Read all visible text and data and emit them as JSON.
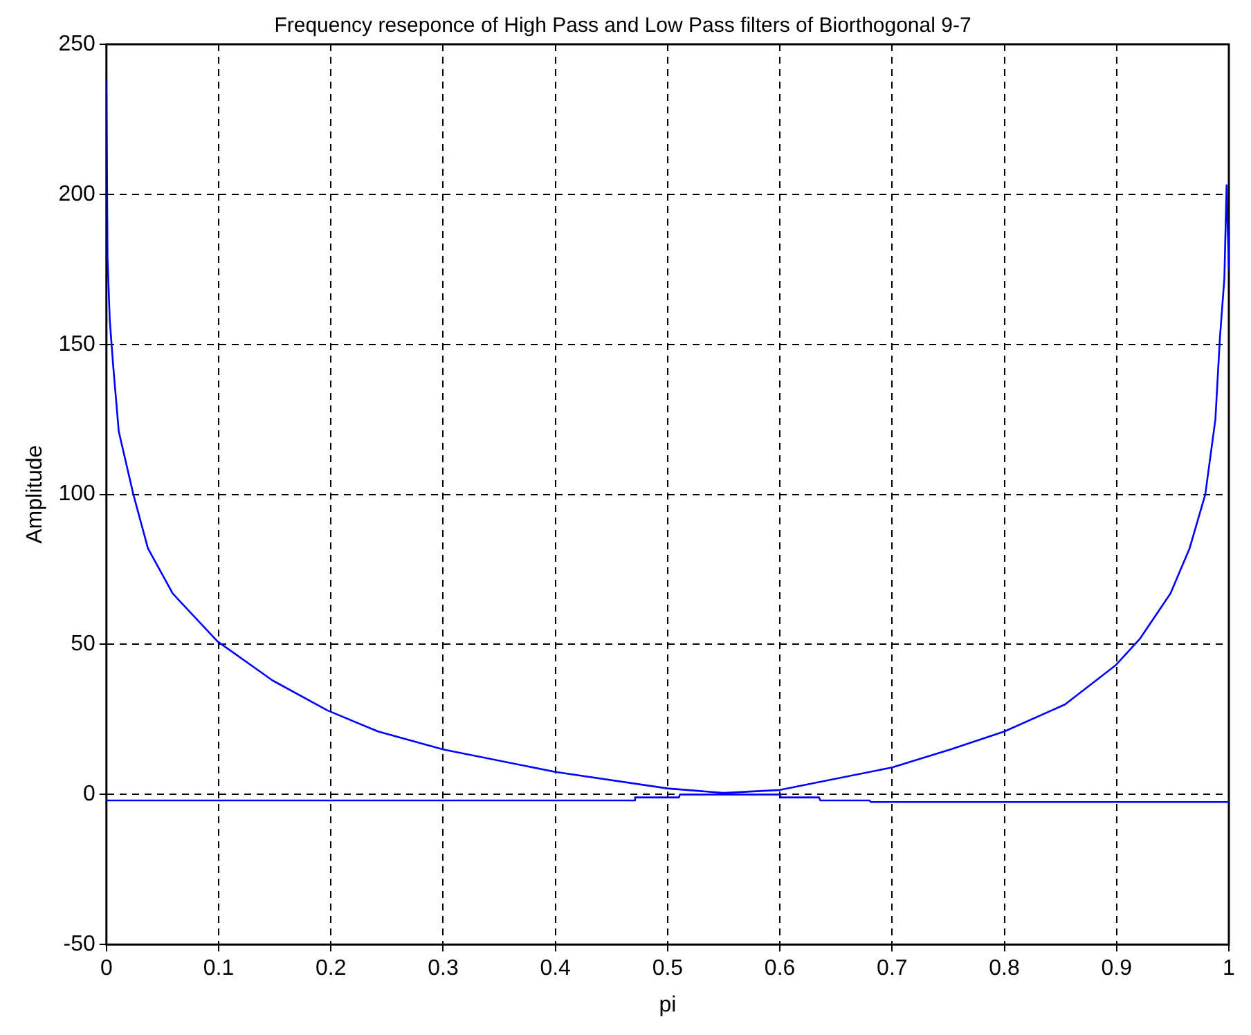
{
  "chart_data": {
    "type": "line",
    "title": "Frequency reseponce of High Pass and Low Pass filters of Biorthogonal 9-7",
    "xlabel": "pi",
    "ylabel": "Amplitude",
    "series": [
      {
        "color": "#0000ff",
        "x": [
          0,
          0.001,
          0.003,
          0.006,
          0.011,
          0.024,
          0.037,
          0.059,
          0.099,
          0.148,
          0.197,
          0.242,
          0.3,
          0.4,
          0.5,
          0.55,
          0.6,
          0.7,
          0.752,
          0.8,
          0.854,
          0.899,
          0.921,
          0.948,
          0.965,
          0.979,
          0.988,
          0.992,
          0.996,
          0.998,
          1
        ],
        "values": [
          238,
          179,
          158,
          143,
          121,
          100,
          82,
          67,
          51,
          38,
          28,
          21,
          15,
          7.5,
          2,
          0.5,
          1.5,
          9,
          15,
          21,
          30,
          43,
          52,
          67,
          82,
          100,
          125,
          152,
          172,
          203,
          175
        ]
      },
      {
        "color": "#0000ff",
        "x": [
          0,
          0.47,
          0.471,
          0.51,
          0.511,
          0.6,
          0.601,
          0.635,
          0.636,
          0.68,
          0.681,
          1
        ],
        "values": [
          -2,
          -2,
          -1,
          -1,
          0,
          0,
          -1,
          -1,
          -2,
          -2,
          -2.5,
          -2.5
        ]
      }
    ],
    "xlim": [
      0,
      1
    ],
    "xticks": [
      0,
      0.1,
      0.2,
      0.3,
      0.4,
      0.5,
      0.6,
      0.7,
      0.8,
      0.9,
      1
    ],
    "ylim": [
      -50,
      250
    ],
    "yticks": [
      -50,
      0,
      50,
      100,
      150,
      200,
      250
    ],
    "grid": true,
    "legend": false,
    "marker": "none",
    "line_style": "solid"
  }
}
